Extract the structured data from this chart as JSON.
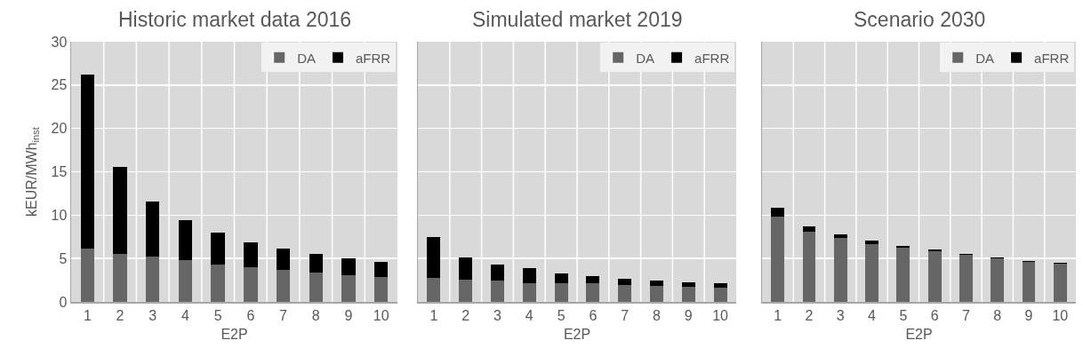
{
  "chart_data": [
    {
      "type": "bar",
      "title": "Historic market data 2016",
      "xlabel": "E2P",
      "ylabel": "kEUR/MWh$_{inst}$",
      "categories": [
        "1",
        "2",
        "3",
        "4",
        "5",
        "6",
        "7",
        "8",
        "9",
        "10"
      ],
      "stacked": true,
      "ylim": [
        0,
        30
      ],
      "yticks": [
        0,
        5,
        10,
        15,
        20,
        25,
        30
      ],
      "grid": true,
      "legend": "top right",
      "series": [
        {
          "name": "DA",
          "color": "#666666",
          "values": [
            6.1,
            5.5,
            5.2,
            4.8,
            4.3,
            4.0,
            3.7,
            3.4,
            3.1,
            2.9
          ]
        },
        {
          "name": "aFRR",
          "color": "#000000",
          "values": [
            20.1,
            10.1,
            6.4,
            4.6,
            3.7,
            2.9,
            2.4,
            2.1,
            1.9,
            1.7
          ]
        }
      ]
    },
    {
      "type": "bar",
      "title": "Simulated market 2019",
      "xlabel": "E2P",
      "categories": [
        "1",
        "2",
        "3",
        "4",
        "5",
        "6",
        "7",
        "8",
        "9",
        "10"
      ],
      "stacked": true,
      "ylim": [
        0,
        30
      ],
      "yticks": [
        0,
        5,
        10,
        15,
        20,
        25,
        30
      ],
      "grid": true,
      "legend": "top right",
      "tick_labels": "x",
      "series": [
        {
          "name": "DA",
          "color": "#666666",
          "values": [
            2.8,
            2.6,
            2.5,
            2.2,
            2.2,
            2.1,
            1.9,
            1.8,
            1.7,
            1.6
          ]
        },
        {
          "name": "aFRR",
          "color": "#000000",
          "values": [
            4.7,
            2.5,
            1.8,
            1.7,
            1.1,
            0.9,
            0.8,
            0.7,
            0.6,
            0.5
          ]
        }
      ]
    },
    {
      "type": "bar",
      "title": "Scenario 2030",
      "xlabel": "E2P",
      "categories": [
        "1",
        "2",
        "3",
        "4",
        "5",
        "6",
        "7",
        "8",
        "9",
        "10"
      ],
      "stacked": true,
      "ylim": [
        0,
        30
      ],
      "yticks": [
        0,
        5,
        10,
        15,
        20,
        25,
        30
      ],
      "grid": true,
      "legend": "top right",
      "tick_labels": "x",
      "series": [
        {
          "name": "DA",
          "color": "#666666",
          "values": [
            9.8,
            8.1,
            7.4,
            6.7,
            6.2,
            5.8,
            5.4,
            5.0,
            4.6,
            4.4
          ]
        },
        {
          "name": "aFRR",
          "color": "#000000",
          "values": [
            1.1,
            0.6,
            0.4,
            0.4,
            0.3,
            0.2,
            0.1,
            0.1,
            0.1,
            0.1
          ]
        }
      ]
    }
  ]
}
